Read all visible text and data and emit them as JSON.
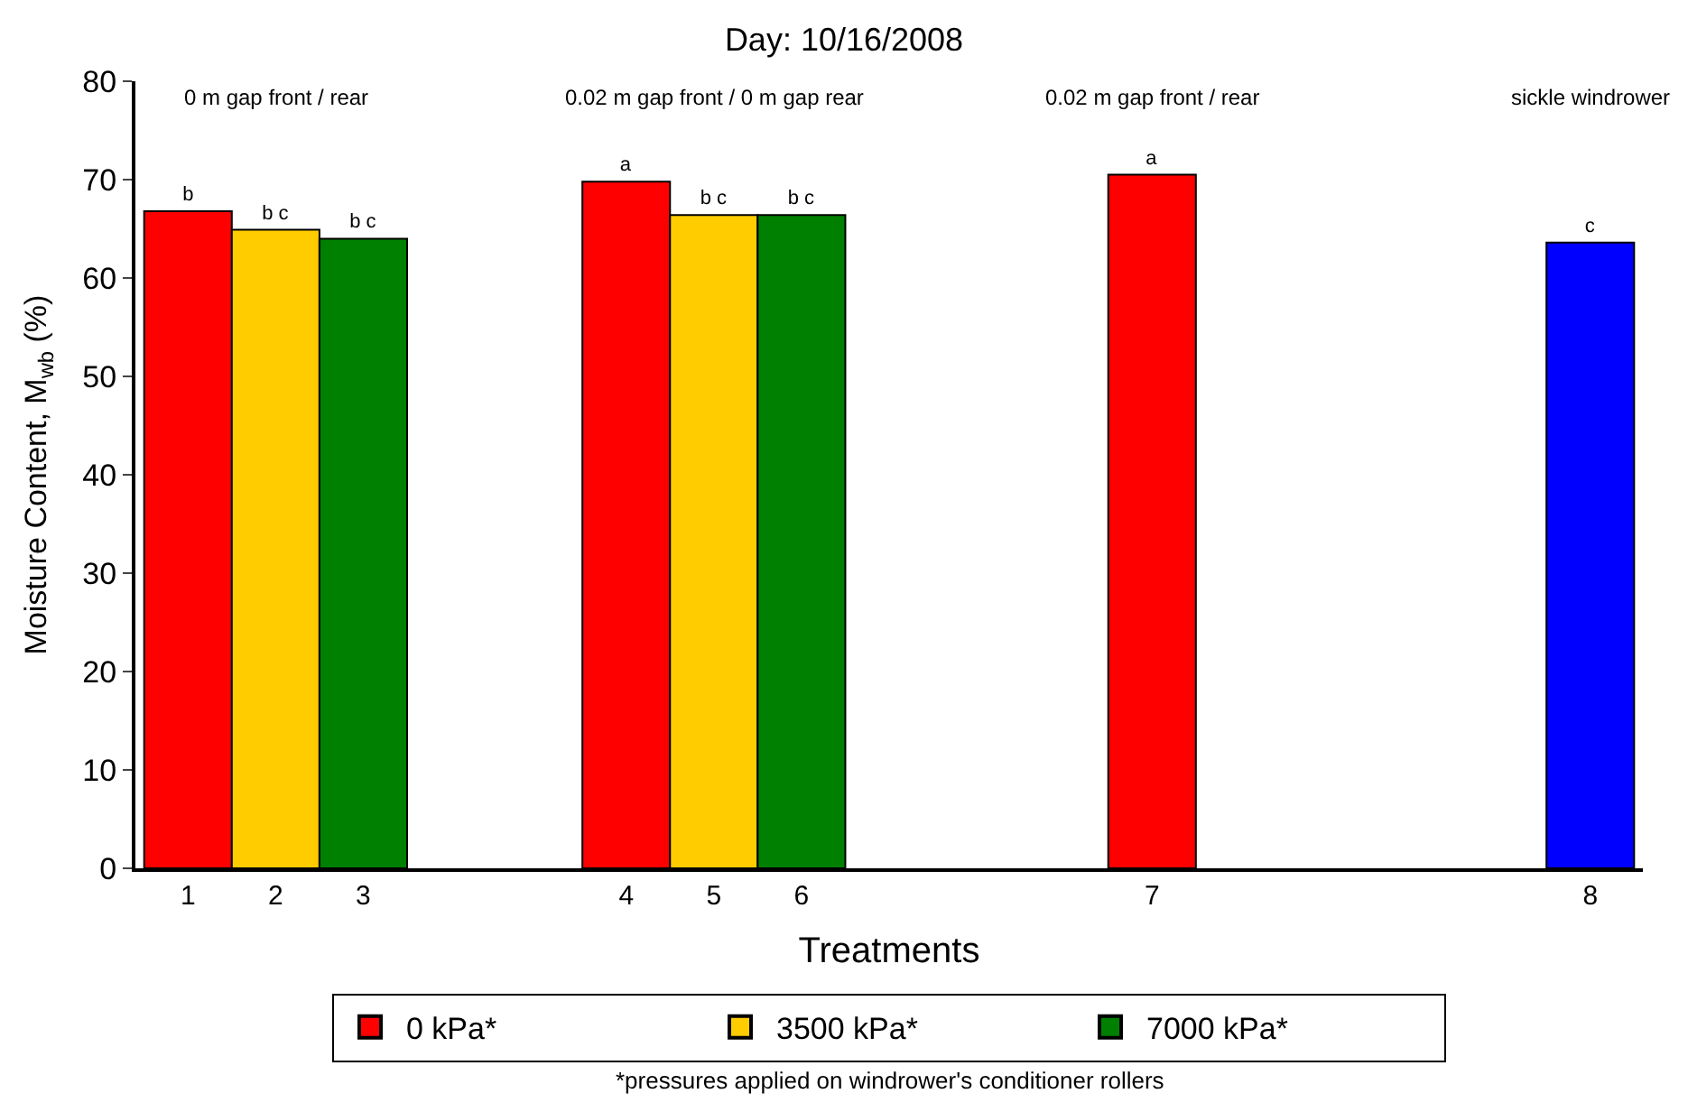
{
  "chart_data": {
    "type": "bar",
    "title": "Day: 10/16/2008",
    "xlabel": "Treatments",
    "ylabel": "Moisture Content, M$_{wb}$ (%)",
    "categories": [
      "1",
      "2",
      "3",
      null,
      null,
      "4",
      "5",
      "6",
      null,
      null,
      null,
      "7",
      null,
      null,
      null,
      null,
      "8"
    ],
    "series": [
      {
        "name": "0 kPa*",
        "color": "#ff0000",
        "values": [
          66.8,
          null,
          null,
          null,
          null,
          69.8,
          null,
          null,
          null,
          null,
          null,
          70.5,
          null,
          null,
          null,
          null,
          null
        ],
        "value_labels": [
          "b",
          null,
          null,
          null,
          null,
          "a",
          null,
          null,
          null,
          null,
          null,
          "a",
          null,
          null,
          null,
          null,
          null
        ]
      },
      {
        "name": "3500 kPa*",
        "color": "#ffcc00",
        "values": [
          null,
          64.9,
          null,
          null,
          null,
          null,
          66.4,
          null,
          null,
          null,
          null,
          null,
          null,
          null,
          null,
          null,
          null
        ],
        "value_labels": [
          null,
          "b c",
          null,
          null,
          null,
          null,
          "b c",
          null,
          null,
          null,
          null,
          null,
          null,
          null,
          null,
          null,
          null
        ]
      },
      {
        "name": "7000 kPa*",
        "color": "#008000",
        "values": [
          null,
          null,
          64.0,
          null,
          null,
          null,
          null,
          66.4,
          null,
          null,
          null,
          null,
          null,
          null,
          null,
          null,
          null
        ],
        "value_labels": [
          null,
          null,
          "b c",
          null,
          null,
          null,
          null,
          "b c",
          null,
          null,
          null,
          null,
          null,
          null,
          null,
          null,
          null
        ]
      },
      {
        "color": "#0000ff",
        "values": [
          null,
          null,
          null,
          null,
          null,
          null,
          null,
          null,
          null,
          null,
          null,
          null,
          null,
          null,
          null,
          null,
          63.6
        ],
        "value_labels": [
          null,
          null,
          null,
          null,
          null,
          null,
          null,
          null,
          null,
          null,
          null,
          null,
          null,
          null,
          null,
          null,
          "c"
        ]
      }
    ],
    "ylim": [
      0,
      80
    ],
    "yticks": [
      0,
      10,
      20,
      30,
      40,
      50,
      60,
      70,
      80
    ],
    "legend": "bottom",
    "annotations": [
      "0 m gap front / rear",
      "0.02 m gap front / 0 m gap rear",
      "0.02 m gap front / rear",
      "sickle windrower",
      "*pressures applied on windrower's conditioner rollers"
    ]
  }
}
